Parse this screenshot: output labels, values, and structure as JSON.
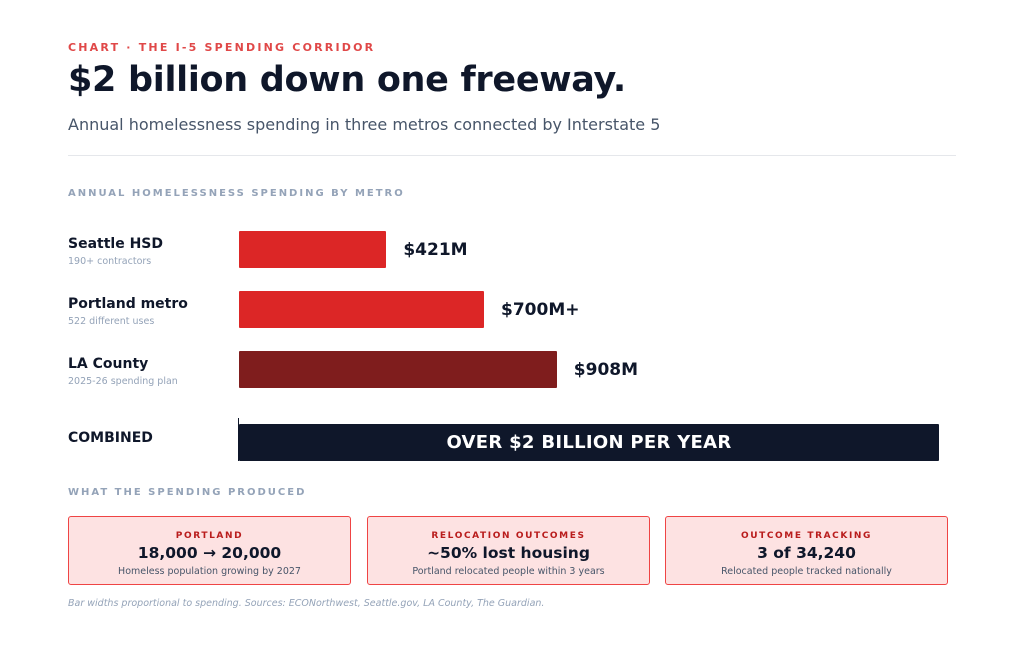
{
  "eyebrow": "CHART · THE I-5 SPENDING CORRIDOR",
  "title": "$2 billion down one freeway.",
  "subtitle": "Annual homelessness spending in three metros connected by Interstate 5",
  "section_spending": "ANNUAL HOMELESSNESS SPENDING BY METRO",
  "section_produced": "WHAT THE SPENDING PRODUCED",
  "chart_data": {
    "type": "bar",
    "orientation": "horizontal",
    "unit": "USD millions per year",
    "categories": [
      "Seattle HSD",
      "Portland metro",
      "LA County"
    ],
    "sublabels": [
      "190+ contractors",
      "522 different uses",
      "2025-26 spending plan"
    ],
    "values": [
      421,
      700,
      908
    ],
    "value_labels": [
      "$421M",
      "$700M+",
      "$908M"
    ],
    "colors": [
      "#dc2626",
      "#dc2626",
      "#7f1d1d"
    ],
    "combined": {
      "label": "COMBINED",
      "text": "OVER $2 BILLION PER YEAR",
      "value": 2000,
      "color": "#0f172a"
    },
    "grid": false,
    "legend": "none"
  },
  "cards": [
    {
      "label": "PORTLAND",
      "value": "18,000 → 20,000",
      "desc": "Homeless population growing by 2027"
    },
    {
      "label": "RELOCATION OUTCOMES",
      "value": "~50% lost housing",
      "desc": "Portland relocated people within 3 years"
    },
    {
      "label": "OUTCOME TRACKING",
      "value": "3 of 34,240",
      "desc": "Relocated people tracked nationally"
    }
  ],
  "footnote": "Bar widths proportional to spending. Sources: ECONorthwest, Seattle.gov, LA County, The Guardian.",
  "colors": {
    "accent": "#e04848",
    "bar_red": "#dc2626",
    "bar_dark_red": "#7f1d1d",
    "combined": "#0f172a",
    "card_bg": "#fde2e2",
    "card_border": "#ef4444"
  }
}
